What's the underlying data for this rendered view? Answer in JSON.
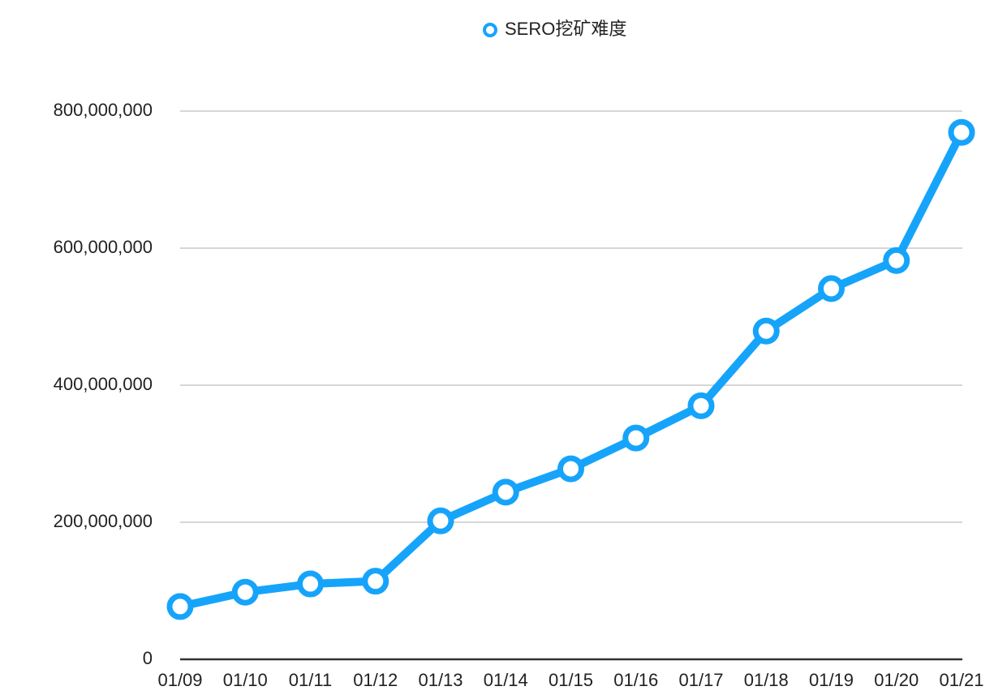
{
  "chart_data": {
    "type": "line",
    "categories": [
      "01/09",
      "01/10",
      "01/11",
      "01/12",
      "01/13",
      "01/14",
      "01/15",
      "01/16",
      "01/17",
      "01/18",
      "01/19",
      "01/20",
      "01/21"
    ],
    "series": [
      {
        "name": "SERO挖矿难度",
        "color": "#16a4fb",
        "values": [
          77000000,
          98000000,
          110000000,
          114000000,
          202000000,
          244000000,
          278000000,
          323000000,
          370000000,
          479000000,
          541000000,
          582000000,
          769000000
        ]
      }
    ],
    "ylim": [
      0,
      800000000
    ],
    "yticks": [
      0,
      {
        "value": 200000000,
        "label": "200,000,000"
      },
      {
        "value": 400000000,
        "label": "400,000,000"
      },
      {
        "value": 600000000,
        "label": "600,000,000"
      },
      {
        "value": 800000000,
        "label": "800,000,000"
      }
    ],
    "grid": true,
    "legend": "top"
  }
}
